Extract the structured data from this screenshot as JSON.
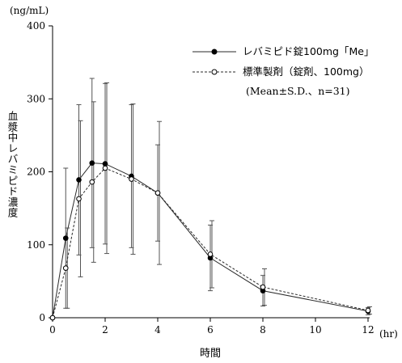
{
  "chart_data": {
    "type": "line",
    "unit_label": "(ng/mL)",
    "ylabel": "血漿中レバミピド濃度",
    "xlabel": "時間",
    "x_unit": "(hr)",
    "xlim": [
      0,
      12
    ],
    "ylim": [
      0,
      400
    ],
    "x_ticks": [
      0,
      2,
      4,
      6,
      8,
      10,
      12
    ],
    "y_ticks": [
      0,
      100,
      200,
      300,
      400
    ],
    "legend_position": "top-right",
    "series": [
      {
        "name": "レバミピド錠100mg「Me」",
        "marker": "filled-circle",
        "line": "solid",
        "x": [
          0,
          0.5,
          1,
          1.5,
          2,
          3,
          4,
          6,
          8,
          12
        ],
        "y": [
          0,
          109,
          189,
          212,
          211,
          194,
          171,
          82,
          37,
          9
        ],
        "sd": [
          0,
          96,
          103,
          116,
          110,
          98,
          66,
          45,
          21,
          5
        ]
      },
      {
        "name": "標準製剤（錠剤、100mg）",
        "marker": "open-circle",
        "line": "dashed",
        "x": [
          0,
          0.5,
          1,
          1.5,
          2,
          3,
          4,
          6,
          8,
          12
        ],
        "y": [
          0,
          68,
          163,
          186,
          205,
          190,
          171,
          87,
          42,
          10
        ],
        "sd": [
          0,
          55,
          107,
          110,
          117,
          103,
          98,
          46,
          25,
          5
        ]
      }
    ],
    "legend_note": "(Mean±S.D.、n=31)"
  },
  "colors": {
    "line": "#2a2a2a",
    "axis": "#000000",
    "error_bar": "#555555"
  }
}
